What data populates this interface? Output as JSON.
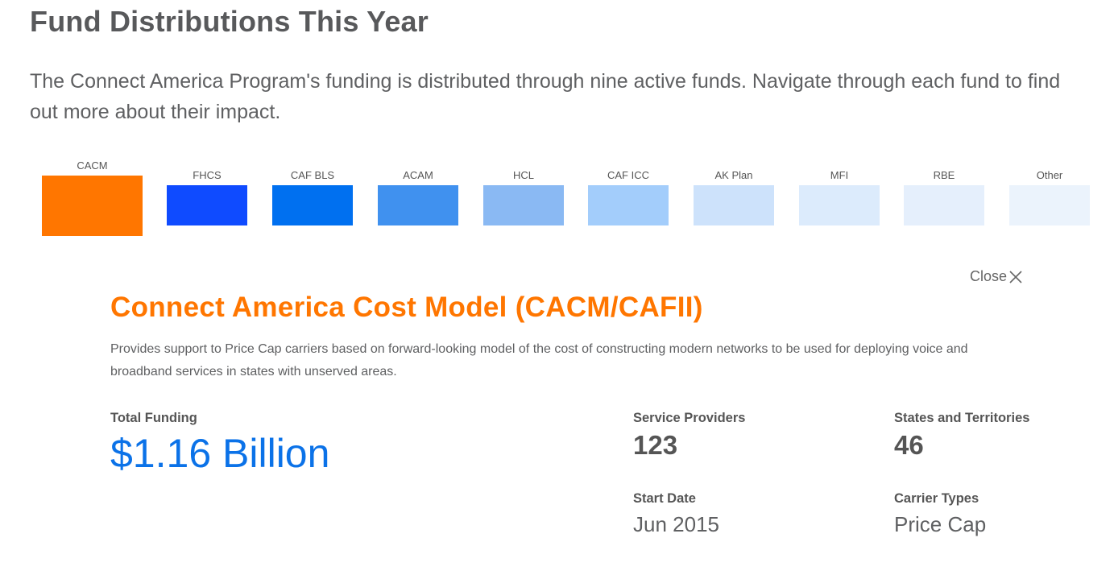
{
  "header": {
    "title": "Fund Distributions This Year",
    "intro": "The Connect America Program's funding is distributed through nine active funds. Navigate through each fund to find out more about their impact."
  },
  "tabs": [
    {
      "label": "CACM",
      "color": "#ff7600",
      "selected": true
    },
    {
      "label": "FHCS",
      "color": "#0f4bff"
    },
    {
      "label": "CAF BLS",
      "color": "#0070f0"
    },
    {
      "label": "ACAM",
      "color": "#4091ef"
    },
    {
      "label": "HCL",
      "color": "#8ab9f3"
    },
    {
      "label": "CAF ICC",
      "color": "#a3cdfb"
    },
    {
      "label": "AK Plan",
      "color": "#cde2fb"
    },
    {
      "label": "MFI",
      "color": "#dcebfc"
    },
    {
      "label": "RBE",
      "color": "#e5effc"
    },
    {
      "label": "Other",
      "color": "#ebf3fc"
    }
  ],
  "detail": {
    "close_label": "Close",
    "title": "Connect America Cost Model (CACM/CAFII)",
    "description": "Provides support to Price Cap carriers based on forward-looking model of the cost of constructing modern networks to be used for deploying voice and broadband services in states with unserved areas.",
    "total_funding_label": "Total Funding",
    "total_funding_value": "$1.16 Billion",
    "service_providers_label": "Service Providers",
    "service_providers_value": "123",
    "states_label": "States and Territories",
    "states_value": "46",
    "start_date_label": "Start Date",
    "start_date_value": "Jun 2015",
    "carrier_types_label": "Carrier Types",
    "carrier_types_value": "Price Cap"
  }
}
